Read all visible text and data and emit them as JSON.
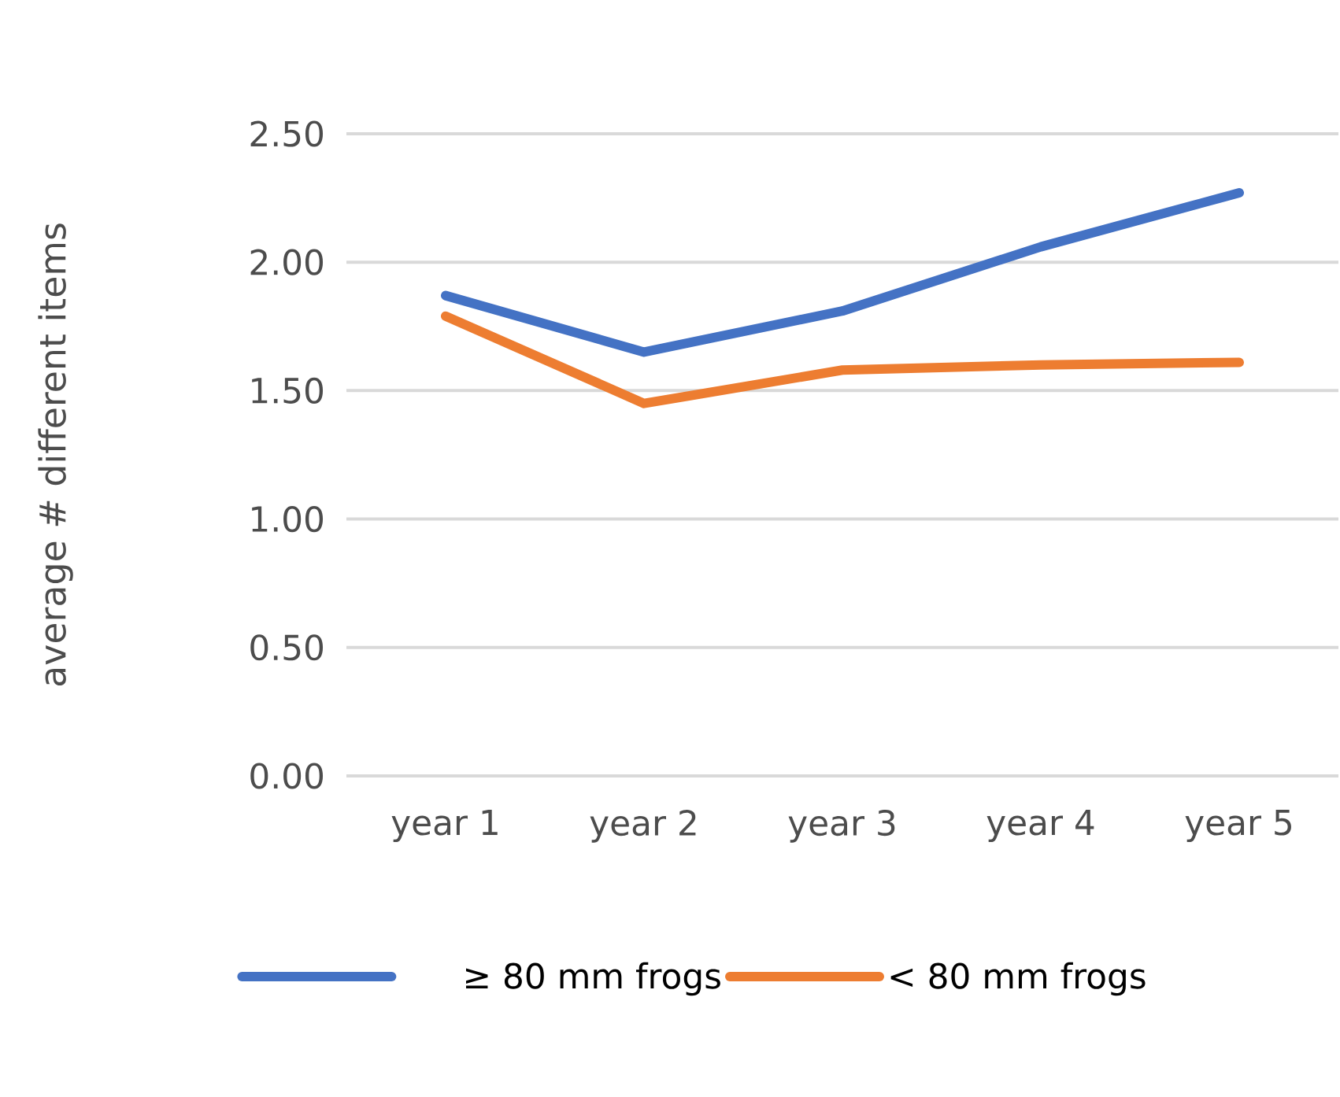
{
  "chart_data": {
    "type": "line",
    "ylabel": "average # different  items",
    "categories": [
      "year 1",
      "year 2",
      "year 3",
      "year 4",
      "year 5"
    ],
    "series": [
      {
        "name": "≥ 80 mm frogs",
        "color": "#4472c4",
        "values": [
          1.87,
          1.65,
          1.81,
          2.06,
          2.27
        ]
      },
      {
        "name": "< 80 mm frogs",
        "color": "#ed7d31",
        "values": [
          1.79,
          1.45,
          1.58,
          1.6,
          1.61
        ]
      }
    ],
    "ylim": [
      0,
      2.5
    ],
    "yticks": [
      {
        "value": 0,
        "label": "0.00"
      },
      {
        "value": 0.5,
        "label": "0.50"
      },
      {
        "value": 1,
        "label": "1.00"
      },
      {
        "value": 1.5,
        "label": "1.50"
      },
      {
        "value": 2,
        "label": "2.00"
      },
      {
        "value": 2.5,
        "label": "2.50"
      }
    ],
    "grid": "y",
    "legend": "bottom",
    "marker": "none",
    "line_style": "solid"
  }
}
